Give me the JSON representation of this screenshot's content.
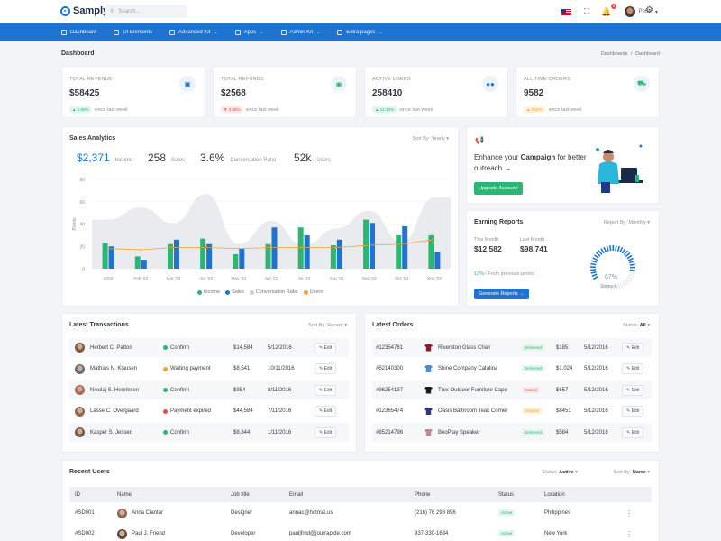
{
  "app": {
    "name": "Samply"
  },
  "topbar": {
    "search_placeholder": "Search...",
    "user_name": "Peter",
    "notif_count": "5"
  },
  "nav": [
    {
      "label": "Dashboard",
      "icon": "grid-icon",
      "chev": ""
    },
    {
      "label": "UI Elements",
      "icon": "layers-icon",
      "chev": ""
    },
    {
      "label": "Advanced Kit",
      "icon": "gift-icon",
      "chev": "⌄"
    },
    {
      "label": "Apps",
      "icon": "rocket-icon",
      "chev": "⌄"
    },
    {
      "label": "Admin Kit",
      "icon": "user-icon",
      "chev": "⌄"
    },
    {
      "label": "Extra pages",
      "icon": "file-icon",
      "chev": "⌄"
    }
  ],
  "page": {
    "title": "Dashboard",
    "crumb1": "Dashboards",
    "crumb_sep": "/",
    "crumb2": "Dashboard"
  },
  "stats": [
    {
      "label": "TOTAL REVENUE",
      "value": "$58425",
      "change": "2.65%",
      "since": "since last week",
      "kind": "up",
      "icon": "wallet-icon"
    },
    {
      "label": "TOTAL REFUNDS",
      "value": "$2568",
      "change": "4.58%",
      "since": "since last week",
      "kind": "down",
      "icon": "refund-icon"
    },
    {
      "label": "ACTIVE USERS",
      "value": "258410",
      "change": "14.33%",
      "since": "since last week",
      "kind": "up",
      "icon": "users-icon"
    },
    {
      "label": "ALL TIME ORDERS",
      "value": "9582",
      "change": "0.55%",
      "since": "since last week",
      "kind": "warn",
      "icon": "cart-icon"
    }
  ],
  "colors": {
    "primary": "#1f74d1",
    "green": "#2bb673",
    "blue": "#1f74d1",
    "orange": "#f4a52a",
    "red": "#e94b4b",
    "gray": "#dfe3ea"
  },
  "sales": {
    "title": "Sales Analytics",
    "sort_label": "Sort By:",
    "sort_value": "Yearly",
    "kpis": [
      {
        "value": "$2,371",
        "label": "Income"
      },
      {
        "value": "258",
        "label": "Sales"
      },
      {
        "value": "3.6%",
        "label": "Conversation Ratio"
      },
      {
        "value": "52k",
        "label": "Users"
      }
    ]
  },
  "chart_data": {
    "type": "bar",
    "ylabel": "Points",
    "ylim": [
      0,
      80
    ],
    "yticks": [
      0,
      20,
      40,
      60,
      80
    ],
    "categories": [
      "2003",
      "Feb '03",
      "Mar '03",
      "Apr '03",
      "May '03",
      "Jun '03",
      "Jul '03",
      "Aug '03",
      "Sep '03",
      "Oct '03",
      "Nov '03"
    ],
    "series": [
      {
        "name": "Income",
        "kind": "bar",
        "color": "#2bb673",
        "values": [
          23,
          11,
          22,
          27,
          13,
          22,
          37,
          21,
          44,
          30,
          30
        ]
      },
      {
        "name": "Sales",
        "kind": "bar",
        "color": "#1f74d1",
        "values": [
          20,
          8,
          26,
          22,
          18,
          37,
          30,
          26,
          41,
          38,
          15
        ]
      },
      {
        "name": "Conversation Ratio",
        "kind": "area",
        "color": "#e9ebef",
        "values": [
          44,
          55,
          41,
          67,
          22,
          43,
          21,
          36,
          52,
          24,
          64
        ]
      },
      {
        "name": "Users",
        "kind": "line",
        "color": "#f4a52a",
        "values": [
          18,
          17,
          19,
          19,
          18,
          19,
          19,
          19,
          21,
          22,
          26
        ]
      }
    ],
    "legend": [
      "Income",
      "Sales",
      "Conversation Ratio",
      "Users"
    ],
    "legend_position": "bottom"
  },
  "promo": {
    "text_a": "Enhance your ",
    "text_b": "Campaign",
    "text_c": " for better outreach",
    "arrow": "→",
    "button": "Upgrade Account!"
  },
  "earning": {
    "title": "Earning Reports",
    "sort_label": "Report By:",
    "sort_value": "Monthly",
    "this_month_label": "This Month",
    "this_month": "$12,582",
    "last_month_label": "Last Month",
    "last_month": "$98,741",
    "change_pct": "12%",
    "change_arrow": "↑",
    "change_text": "From previous period",
    "button": "Generate Reports",
    "gauge_value": "67%",
    "gauge_fraction": 0.67,
    "gauge_series": "Series A"
  },
  "transactions": {
    "title": "Latest Transactions",
    "sort_label": "Sort By:",
    "sort_value": "Recent",
    "edit": "Edit",
    "rows": [
      {
        "name": "Herbert C. Patton",
        "status": "Confirm",
        "status_color": "#2bb673",
        "amount": "$14,584",
        "date": "5/12/2016",
        "face": "#7a5a48"
      },
      {
        "name": "Mathias N. Klausen",
        "status": "Waiting payment",
        "status_color": "#f4a52a",
        "amount": "$8,541",
        "date": "10/11/2016",
        "face": "#5d6e86"
      },
      {
        "name": "Nikolaj S. Henriksen",
        "status": "Confirm",
        "status_color": "#2bb673",
        "amount": "$954",
        "date": "8/11/2016",
        "face": "#a56c5a"
      },
      {
        "name": "Lasse C. Overgaard",
        "status": "Payment expired",
        "status_color": "#e94b4b",
        "amount": "$44,584",
        "date": "7/11/2016",
        "face": "#8b6a55"
      },
      {
        "name": "Kasper S. Jessen",
        "status": "Confirm",
        "status_color": "#2bb673",
        "amount": "$8,844",
        "date": "1/11/2016",
        "face": "#6d5c4f"
      }
    ]
  },
  "orders": {
    "title": "Latest Orders",
    "status_label": "Status:",
    "status_value": "All",
    "edit": "Edit",
    "rows": [
      {
        "id": "#12354781",
        "product": "Riverston Glass Chair",
        "status": "Delivered",
        "kind": "green",
        "price": "$185",
        "date": "5/12/2016",
        "shirt": "#8b1b2b"
      },
      {
        "id": "#52140300",
        "product": "Shine Company Catalina",
        "status": "Delivered",
        "kind": "green",
        "price": "$1,024",
        "date": "5/12/2016",
        "shirt": "#4a8ad4"
      },
      {
        "id": "#96254137",
        "product": "Trex Outdoor Furniture Cape",
        "status": "Cancel",
        "kind": "red",
        "price": "$657",
        "date": "5/12/2016",
        "shirt": "#1c1c1c"
      },
      {
        "id": "#12365474",
        "product": "Oasis Bathroom Teak Corner",
        "status": "Shipped",
        "kind": "orange",
        "price": "$8451",
        "date": "5/12/2016",
        "shirt": "#2f3a7a"
      },
      {
        "id": "#85214796",
        "product": "BeoPlay Speaker",
        "status": "Delivered",
        "kind": "green",
        "price": "$584",
        "date": "5/12/2016",
        "shirt": "#c9848f"
      }
    ]
  },
  "users": {
    "title": "Recent Users",
    "status_label": "Status:",
    "status_value": "Active",
    "sort_label": "Sort By:",
    "sort_value": "Name",
    "headers": [
      "ID",
      "Name",
      "Job title",
      "Email",
      "Phone",
      "Status",
      "Location"
    ],
    "rows": [
      {
        "id": "#SD001",
        "name": "Anna Ciantar",
        "job": "Designer",
        "email": "annac@hotmai.us",
        "phone": "(216) 76 298 896",
        "status": "Active",
        "location": "Philippines",
        "face": "#8d6b5a"
      },
      {
        "id": "#SD002",
        "name": "Paul J. Friend",
        "job": "Developer",
        "email": "pauljfrnd@jourrapide.com",
        "phone": "937-330-1634",
        "status": "Active",
        "location": "New York",
        "face": "#5a4a40"
      }
    ]
  }
}
